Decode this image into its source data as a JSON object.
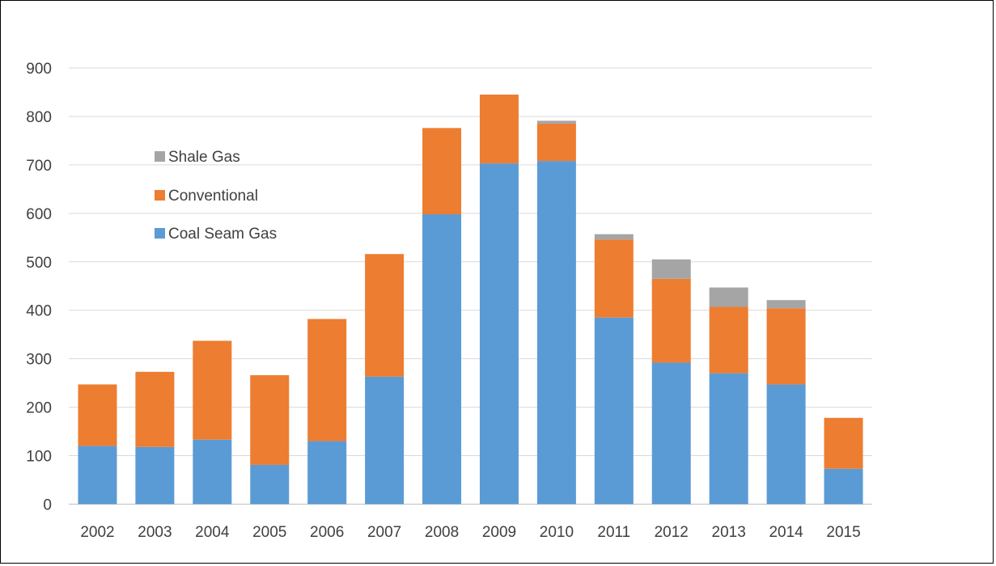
{
  "chart_data": {
    "type": "bar",
    "stacked": true,
    "categories": [
      "2002",
      "2003",
      "2004",
      "2005",
      "2006",
      "2007",
      "2008",
      "2009",
      "2010",
      "2011",
      "2012",
      "2013",
      "2014",
      "2015"
    ],
    "series": [
      {
        "name": "Coal Seam Gas",
        "color": "#5B9BD5",
        "values": [
          120,
          118,
          133,
          81,
          130,
          263,
          598,
          703,
          708,
          385,
          292,
          270,
          247,
          73
        ]
      },
      {
        "name": "Conventional",
        "color": "#ED7D31",
        "values": [
          127,
          155,
          204,
          185,
          252,
          253,
          178,
          142,
          77,
          161,
          173,
          137,
          157,
          105
        ]
      },
      {
        "name": "Shale Gas",
        "color": "#A5A5A5",
        "values": [
          0,
          0,
          0,
          0,
          0,
          0,
          0,
          0,
          6,
          11,
          40,
          40,
          17,
          0
        ]
      }
    ],
    "title": "",
    "xlabel": "",
    "ylabel": "",
    "ylim": [
      0,
      900
    ],
    "yticks": [
      "0",
      "100",
      "200",
      "300",
      "400",
      "500",
      "600",
      "700",
      "800",
      "900"
    ],
    "grid": true,
    "legend_position": "top-left-inside",
    "legend_order": [
      "Shale Gas",
      "Conventional",
      "Coal Seam Gas"
    ]
  }
}
